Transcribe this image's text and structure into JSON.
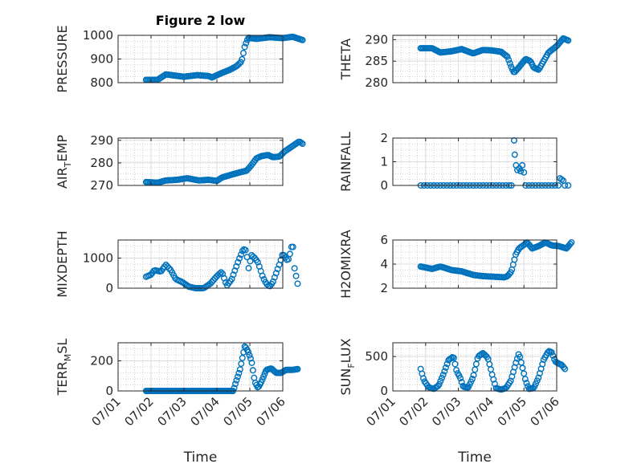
{
  "figure": {
    "title": "Figure 2 low",
    "xlabel": "Time"
  },
  "colors": {
    "marker": "#0072BD",
    "axis": "#262626",
    "grid_major": "#dcdcdc",
    "grid_minor": "#c8c8c8"
  },
  "chart_data": [
    {
      "type": "scatter",
      "ylabel": "PRESSURE",
      "title": "Figure 2 low",
      "xlim": [
        "07/01",
        "07/06"
      ],
      "xticks": [
        "07/01",
        "07/02",
        "07/03",
        "07/04",
        "07/05",
        "07/06"
      ],
      "ylim": [
        800,
        1000
      ],
      "yticks": [
        800,
        900,
        1000
      ],
      "grid": "on",
      "series": [
        {
          "anchors": [
            [
              0.85,
              812
            ],
            [
              1.2,
              812
            ],
            [
              1.45,
              835
            ],
            [
              2.0,
              825
            ],
            [
              2.4,
              832
            ],
            [
              2.75,
              828
            ],
            [
              2.85,
              822
            ],
            [
              3.1,
              838
            ],
            [
              3.4,
              855
            ],
            [
              3.6,
              870
            ],
            [
              3.75,
              890
            ],
            [
              3.85,
              955
            ],
            [
              3.95,
              990
            ],
            [
              4.2,
              985
            ],
            [
              4.6,
              992
            ],
            [
              5.0,
              988
            ],
            [
              5.3,
              994
            ],
            [
              5.6,
              980
            ]
          ],
          "n": 120
        }
      ]
    },
    {
      "type": "scatter",
      "ylabel": "THETA",
      "xlim": [
        "07/01",
        "07/06"
      ],
      "xticks": [
        "07/01",
        "07/02",
        "07/03",
        "07/04",
        "07/05",
        "07/06"
      ],
      "ylim": [
        280,
        291
      ],
      "yticks": [
        280,
        285,
        290
      ],
      "grid": "on",
      "series": [
        {
          "anchors": [
            [
              0.85,
              288
            ],
            [
              1.2,
              288
            ],
            [
              1.45,
              287
            ],
            [
              1.8,
              287.3
            ],
            [
              2.1,
              287.8
            ],
            [
              2.45,
              286.8
            ],
            [
              2.75,
              287.6
            ],
            [
              3.0,
              287.5
            ],
            [
              3.3,
              287.2
            ],
            [
              3.5,
              286
            ],
            [
              3.62,
              283.5
            ],
            [
              3.7,
              282.3
            ],
            [
              3.85,
              283.6
            ],
            [
              4.05,
              285.5
            ],
            [
              4.2,
              285
            ],
            [
              4.3,
              283.5
            ],
            [
              4.45,
              283
            ],
            [
              4.6,
              285
            ],
            [
              4.75,
              287
            ],
            [
              5.0,
              288.5
            ],
            [
              5.2,
              290.3
            ],
            [
              5.35,
              289.8
            ]
          ],
          "n": 120
        }
      ]
    },
    {
      "type": "scatter",
      "ylabel": "AIR_TEMP",
      "xlim": [
        "07/01",
        "07/06"
      ],
      "xticks": [
        "07/01",
        "07/02",
        "07/03",
        "07/04",
        "07/05",
        "07/06"
      ],
      "ylim": [
        270,
        291
      ],
      "yticks": [
        270,
        280,
        290
      ],
      "grid": "on",
      "series": [
        {
          "anchors": [
            [
              0.85,
              271.5
            ],
            [
              1.2,
              271.2
            ],
            [
              1.45,
              272.2
            ],
            [
              1.8,
              272.5
            ],
            [
              2.1,
              273.2
            ],
            [
              2.45,
              272.2
            ],
            [
              2.75,
              272.5
            ],
            [
              3.0,
              272
            ],
            [
              3.15,
              273.5
            ],
            [
              3.5,
              275
            ],
            [
              3.75,
              276
            ],
            [
              3.9,
              276.5
            ],
            [
              4.05,
              279
            ],
            [
              4.2,
              282
            ],
            [
              4.35,
              283
            ],
            [
              4.55,
              283.5
            ],
            [
              4.7,
              282.5
            ],
            [
              4.9,
              282.8
            ],
            [
              5.05,
              285
            ],
            [
              5.25,
              287
            ],
            [
              5.5,
              289.5
            ],
            [
              5.6,
              288.5
            ]
          ],
          "n": 120
        }
      ]
    },
    {
      "type": "scatter",
      "ylabel": "RAINFALL",
      "xlim": [
        "07/01",
        "07/06"
      ],
      "xticks": [
        "07/01",
        "07/02",
        "07/03",
        "07/04",
        "07/05",
        "07/06"
      ],
      "ylim": [
        0,
        2
      ],
      "yticks": [
        0,
        1,
        2
      ],
      "grid": "on",
      "series": [
        {
          "points": [
            [
              0.85,
              0
            ],
            [
              0.95,
              0
            ],
            [
              1.05,
              0
            ],
            [
              1.15,
              0
            ],
            [
              1.25,
              0
            ],
            [
              1.35,
              0
            ],
            [
              1.45,
              0
            ],
            [
              1.55,
              0
            ],
            [
              1.65,
              0
            ],
            [
              1.75,
              0
            ],
            [
              1.85,
              0
            ],
            [
              1.95,
              0
            ],
            [
              2.05,
              0
            ],
            [
              2.15,
              0
            ],
            [
              2.25,
              0
            ],
            [
              2.35,
              0
            ],
            [
              2.45,
              0
            ],
            [
              2.55,
              0
            ],
            [
              2.65,
              0
            ],
            [
              2.75,
              0
            ],
            [
              2.85,
              0
            ],
            [
              2.95,
              0
            ],
            [
              3.05,
              0
            ],
            [
              3.15,
              0
            ],
            [
              3.25,
              0
            ],
            [
              3.35,
              0
            ],
            [
              3.45,
              0
            ],
            [
              3.55,
              0
            ],
            [
              3.62,
              0
            ],
            [
              3.7,
              1.9
            ],
            [
              3.72,
              1.3
            ],
            [
              3.76,
              0.85
            ],
            [
              3.8,
              0.65
            ],
            [
              3.86,
              0.72
            ],
            [
              3.9,
              0.6
            ],
            [
              3.95,
              0.85
            ],
            [
              4.0,
              0.55
            ],
            [
              4.05,
              0
            ],
            [
              4.15,
              0
            ],
            [
              4.25,
              0
            ],
            [
              4.35,
              0
            ],
            [
              4.45,
              0
            ],
            [
              4.55,
              0
            ],
            [
              4.65,
              0
            ],
            [
              4.75,
              0
            ],
            [
              4.85,
              0
            ],
            [
              4.95,
              0
            ],
            [
              5.05,
              0
            ],
            [
              5.1,
              0.3
            ],
            [
              5.15,
              0.25
            ],
            [
              5.2,
              0.2
            ],
            [
              5.25,
              0
            ],
            [
              5.35,
              0
            ]
          ]
        }
      ]
    },
    {
      "type": "scatter",
      "ylabel": "MIXDEPTH",
      "xlim": [
        "07/01",
        "07/06"
      ],
      "xticks": [
        "07/01",
        "07/02",
        "07/03",
        "07/04",
        "07/05",
        "07/06"
      ],
      "ylim": [
        0,
        1600
      ],
      "yticks": [
        0,
        1000
      ],
      "grid": "on",
      "series": [
        {
          "anchors": [
            [
              0.85,
              380
            ],
            [
              1.0,
              450
            ],
            [
              1.1,
              600
            ],
            [
              1.3,
              550
            ],
            [
              1.45,
              780
            ],
            [
              1.6,
              600
            ],
            [
              1.75,
              300
            ],
            [
              1.95,
              200
            ],
            [
              2.15,
              50
            ],
            [
              2.35,
              0
            ],
            [
              2.6,
              0
            ],
            [
              2.8,
              150
            ],
            [
              3.0,
              400
            ],
            [
              3.15,
              550
            ],
            [
              3.3,
              80
            ],
            [
              3.45,
              300
            ],
            [
              3.65,
              900
            ],
            [
              3.8,
              1300
            ],
            [
              3.9,
              1250
            ],
            [
              3.95,
              600
            ],
            [
              4.05,
              1100
            ],
            [
              4.15,
              1000
            ],
            [
              4.25,
              850
            ],
            [
              4.4,
              350
            ],
            [
              4.5,
              150
            ],
            [
              4.6,
              50
            ],
            [
              4.7,
              200
            ],
            [
              4.8,
              500
            ],
            [
              4.9,
              800
            ],
            [
              5.0,
              1150
            ],
            [
              5.15,
              900
            ],
            [
              5.2,
              1050
            ],
            [
              5.3,
              1550
            ],
            [
              5.35,
              700
            ],
            [
              5.45,
              150
            ]
          ],
          "n": 100
        }
      ]
    },
    {
      "type": "scatter",
      "ylabel": "H2OMIXRA",
      "xlim": [
        "07/01",
        "07/06"
      ],
      "xticks": [
        "07/01",
        "07/02",
        "07/03",
        "07/04",
        "07/05",
        "07/06"
      ],
      "ylim": [
        2,
        6
      ],
      "yticks": [
        2,
        4,
        6
      ],
      "grid": "on",
      "series": [
        {
          "anchors": [
            [
              0.85,
              3.8
            ],
            [
              1.2,
              3.6
            ],
            [
              1.45,
              3.8
            ],
            [
              1.8,
              3.5
            ],
            [
              2.1,
              3.4
            ],
            [
              2.45,
              3.1
            ],
            [
              2.75,
              3.0
            ],
            [
              3.1,
              2.95
            ],
            [
              3.4,
              2.9
            ],
            [
              3.5,
              3.0
            ],
            [
              3.62,
              3.4
            ],
            [
              3.75,
              4.8
            ],
            [
              3.85,
              5.3
            ],
            [
              4.0,
              5.6
            ],
            [
              4.1,
              5.8
            ],
            [
              4.25,
              5.3
            ],
            [
              4.45,
              5.5
            ],
            [
              4.65,
              5.8
            ],
            [
              4.85,
              5.55
            ],
            [
              5.05,
              5.5
            ],
            [
              5.3,
              5.3
            ],
            [
              5.45,
              5.8
            ]
          ],
          "n": 120
        }
      ]
    },
    {
      "type": "scatter",
      "ylabel": "TERR_MSL",
      "xlim": [
        "07/01",
        "07/06"
      ],
      "xticks": [
        "07/01",
        "07/02",
        "07/03",
        "07/04",
        "07/05",
        "07/06"
      ],
      "ylim": [
        0,
        320
      ],
      "yticks": [
        0,
        200
      ],
      "grid": "on",
      "series": [
        {
          "anchors": [
            [
              0.85,
              0
            ],
            [
              1.5,
              0
            ],
            [
              2.2,
              0
            ],
            [
              2.9,
              0
            ],
            [
              3.5,
              0
            ],
            [
              3.55,
              40
            ],
            [
              3.7,
              140
            ],
            [
              3.85,
              300
            ],
            [
              3.95,
              260
            ],
            [
              4.05,
              200
            ],
            [
              4.15,
              60
            ],
            [
              4.25,
              20
            ],
            [
              4.35,
              60
            ],
            [
              4.5,
              140
            ],
            [
              4.65,
              150
            ],
            [
              4.8,
              120
            ],
            [
              4.95,
              120
            ],
            [
              5.1,
              140
            ],
            [
              5.3,
              140
            ],
            [
              5.45,
              145
            ]
          ],
          "n": 130
        }
      ]
    },
    {
      "type": "scatter",
      "ylabel": "SUN_FLUX",
      "xlim": [
        "07/01",
        "07/06"
      ],
      "xticks": [
        "07/01",
        "07/02",
        "07/03",
        "07/04",
        "07/05",
        "07/06"
      ],
      "ylim": [
        0,
        700
      ],
      "yticks": [
        0,
        500
      ],
      "grid": "on",
      "series": [
        {
          "anchors": [
            [
              0.85,
              320
            ],
            [
              0.95,
              150
            ],
            [
              1.1,
              50
            ],
            [
              1.25,
              30
            ],
            [
              1.4,
              80
            ],
            [
              1.55,
              250
            ],
            [
              1.7,
              450
            ],
            [
              1.85,
              500
            ],
            [
              1.95,
              280
            ],
            [
              2.05,
              200
            ],
            [
              2.15,
              60
            ],
            [
              2.3,
              50
            ],
            [
              2.45,
              200
            ],
            [
              2.6,
              500
            ],
            [
              2.75,
              550
            ],
            [
              2.9,
              480
            ],
            [
              3.05,
              200
            ],
            [
              3.15,
              40
            ],
            [
              3.3,
              20
            ],
            [
              3.45,
              40
            ],
            [
              3.6,
              150
            ],
            [
              3.75,
              400
            ],
            [
              3.85,
              550
            ],
            [
              3.95,
              350
            ],
            [
              4.05,
              150
            ],
            [
              4.15,
              30
            ],
            [
              4.3,
              40
            ],
            [
              4.45,
              200
            ],
            [
              4.6,
              450
            ],
            [
              4.75,
              580
            ],
            [
              4.85,
              560
            ],
            [
              4.95,
              430
            ],
            [
              5.05,
              400
            ],
            [
              5.15,
              380
            ],
            [
              5.25,
              320
            ]
          ],
          "n": 110
        }
      ]
    }
  ]
}
